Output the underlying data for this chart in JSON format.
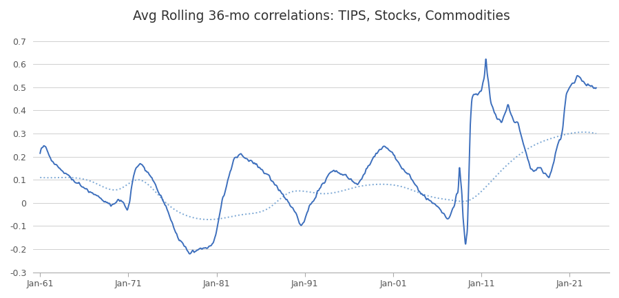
{
  "title": "Avg Rolling 36-mo correlations: TIPS, Stocks, Commodities",
  "title_fontsize": 13.5,
  "xlim_years": [
    1961,
    2025
  ],
  "ylim": [
    -0.3,
    0.75
  ],
  "yticks": [
    -0.3,
    -0.2,
    -0.1,
    0,
    0.1,
    0.2,
    0.3,
    0.4,
    0.5,
    0.6,
    0.7
  ],
  "xtick_labels": [
    "Jan-61",
    "Jan-71",
    "Jan-81",
    "Jan-91",
    "Jan-01",
    "Jan-11",
    "Jan-21"
  ],
  "xtick_years": [
    1961,
    1971,
    1981,
    1991,
    2001,
    2011,
    2021
  ],
  "line_color": "#3C6EBC",
  "dotted_color": "#7BA7D4",
  "background_color": "#FFFFFF",
  "grid_color": "#C8C8C8",
  "line_width": 1.4,
  "dotted_lw": 1.4,
  "solid_key_points": [
    [
      1961.0,
      0.21
    ],
    [
      1961.4,
      0.25
    ],
    [
      1961.8,
      0.23
    ],
    [
      1962.2,
      0.19
    ],
    [
      1962.6,
      0.17
    ],
    [
      1963.0,
      0.16
    ],
    [
      1963.4,
      0.14
    ],
    [
      1963.8,
      0.13
    ],
    [
      1964.2,
      0.12
    ],
    [
      1964.6,
      0.1
    ],
    [
      1965.0,
      0.09
    ],
    [
      1965.4,
      0.08
    ],
    [
      1965.8,
      0.07
    ],
    [
      1966.2,
      0.06
    ],
    [
      1966.6,
      0.05
    ],
    [
      1967.0,
      0.04
    ],
    [
      1967.4,
      0.03
    ],
    [
      1967.8,
      0.02
    ],
    [
      1968.2,
      0.01
    ],
    [
      1968.6,
      0.0
    ],
    [
      1969.0,
      -0.01
    ],
    [
      1969.5,
      0.0
    ],
    [
      1970.0,
      0.01
    ],
    [
      1970.5,
      0.0
    ],
    [
      1971.0,
      -0.02
    ],
    [
      1971.3,
      0.05
    ],
    [
      1971.6,
      0.12
    ],
    [
      1972.0,
      0.16
    ],
    [
      1972.4,
      0.17
    ],
    [
      1972.8,
      0.15
    ],
    [
      1973.2,
      0.13
    ],
    [
      1973.6,
      0.11
    ],
    [
      1974.0,
      0.08
    ],
    [
      1974.4,
      0.05
    ],
    [
      1974.8,
      0.02
    ],
    [
      1975.2,
      -0.01
    ],
    [
      1975.6,
      -0.05
    ],
    [
      1976.0,
      -0.09
    ],
    [
      1976.4,
      -0.13
    ],
    [
      1976.8,
      -0.16
    ],
    [
      1977.2,
      -0.18
    ],
    [
      1977.6,
      -0.2
    ],
    [
      1978.0,
      -0.22
    ],
    [
      1978.3,
      -0.21
    ],
    [
      1978.6,
      -0.21
    ],
    [
      1979.0,
      -0.2
    ],
    [
      1979.4,
      -0.2
    ],
    [
      1979.8,
      -0.2
    ],
    [
      1980.2,
      -0.19
    ],
    [
      1980.6,
      -0.17
    ],
    [
      1981.0,
      -0.12
    ],
    [
      1981.3,
      -0.06
    ],
    [
      1981.6,
      0.01
    ],
    [
      1982.0,
      0.05
    ],
    [
      1982.3,
      0.1
    ],
    [
      1982.6,
      0.14
    ],
    [
      1983.0,
      0.19
    ],
    [
      1983.3,
      0.2
    ],
    [
      1983.6,
      0.21
    ],
    [
      1984.0,
      0.2
    ],
    [
      1984.3,
      0.19
    ],
    [
      1984.6,
      0.18
    ],
    [
      1985.0,
      0.18
    ],
    [
      1985.3,
      0.17
    ],
    [
      1985.6,
      0.16
    ],
    [
      1986.0,
      0.15
    ],
    [
      1986.4,
      0.13
    ],
    [
      1986.8,
      0.12
    ],
    [
      1987.2,
      0.1
    ],
    [
      1987.6,
      0.08
    ],
    [
      1988.0,
      0.06
    ],
    [
      1988.4,
      0.04
    ],
    [
      1988.8,
      0.02
    ],
    [
      1989.2,
      0.0
    ],
    [
      1989.6,
      -0.02
    ],
    [
      1990.0,
      -0.05
    ],
    [
      1990.3,
      -0.08
    ],
    [
      1990.6,
      -0.1
    ],
    [
      1991.0,
      -0.07
    ],
    [
      1991.3,
      -0.04
    ],
    [
      1991.6,
      -0.01
    ],
    [
      1992.0,
      0.01
    ],
    [
      1992.4,
      0.04
    ],
    [
      1992.8,
      0.07
    ],
    [
      1993.2,
      0.09
    ],
    [
      1993.5,
      0.11
    ],
    [
      1993.8,
      0.13
    ],
    [
      1994.2,
      0.14
    ],
    [
      1994.5,
      0.14
    ],
    [
      1994.8,
      0.13
    ],
    [
      1995.2,
      0.12
    ],
    [
      1995.5,
      0.12
    ],
    [
      1995.8,
      0.11
    ],
    [
      1996.2,
      0.1
    ],
    [
      1996.5,
      0.09
    ],
    [
      1996.8,
      0.08
    ],
    [
      1997.2,
      0.09
    ],
    [
      1997.5,
      0.11
    ],
    [
      1997.8,
      0.13
    ],
    [
      1998.2,
      0.16
    ],
    [
      1998.5,
      0.18
    ],
    [
      1998.8,
      0.2
    ],
    [
      1999.2,
      0.22
    ],
    [
      1999.5,
      0.23
    ],
    [
      1999.8,
      0.24
    ],
    [
      2000.2,
      0.24
    ],
    [
      2000.5,
      0.23
    ],
    [
      2000.8,
      0.22
    ],
    [
      2001.2,
      0.2
    ],
    [
      2001.5,
      0.18
    ],
    [
      2001.8,
      0.16
    ],
    [
      2002.2,
      0.14
    ],
    [
      2002.5,
      0.13
    ],
    [
      2002.8,
      0.12
    ],
    [
      2003.2,
      0.1
    ],
    [
      2003.5,
      0.08
    ],
    [
      2003.8,
      0.06
    ],
    [
      2004.2,
      0.04
    ],
    [
      2004.5,
      0.03
    ],
    [
      2004.8,
      0.02
    ],
    [
      2005.2,
      0.01
    ],
    [
      2005.5,
      0.0
    ],
    [
      2005.8,
      -0.01
    ],
    [
      2006.2,
      -0.02
    ],
    [
      2006.5,
      -0.04
    ],
    [
      2006.8,
      -0.05
    ],
    [
      2007.2,
      -0.07
    ],
    [
      2007.4,
      -0.06
    ],
    [
      2007.6,
      -0.04
    ],
    [
      2007.8,
      -0.02
    ],
    [
      2008.0,
      0.0
    ],
    [
      2008.2,
      0.04
    ],
    [
      2008.4,
      0.08
    ],
    [
      2008.5,
      0.15
    ],
    [
      2008.6,
      0.12
    ],
    [
      2008.7,
      0.08
    ],
    [
      2008.8,
      0.03
    ],
    [
      2008.9,
      -0.05
    ],
    [
      2009.0,
      -0.1
    ],
    [
      2009.1,
      -0.15
    ],
    [
      2009.2,
      -0.18
    ],
    [
      2009.25,
      -0.17
    ],
    [
      2009.3,
      -0.15
    ],
    [
      2009.4,
      -0.12
    ],
    [
      2009.5,
      0.0
    ],
    [
      2009.6,
      0.15
    ],
    [
      2009.7,
      0.3
    ],
    [
      2009.8,
      0.38
    ],
    [
      2009.9,
      0.44
    ],
    [
      2010.0,
      0.46
    ],
    [
      2010.2,
      0.47
    ],
    [
      2010.5,
      0.47
    ],
    [
      2010.8,
      0.48
    ],
    [
      2011.0,
      0.49
    ],
    [
      2011.2,
      0.53
    ],
    [
      2011.4,
      0.58
    ],
    [
      2011.5,
      0.62
    ],
    [
      2011.6,
      0.58
    ],
    [
      2011.8,
      0.52
    ],
    [
      2012.0,
      0.45
    ],
    [
      2012.2,
      0.42
    ],
    [
      2012.4,
      0.4
    ],
    [
      2012.6,
      0.38
    ],
    [
      2012.8,
      0.36
    ],
    [
      2013.0,
      0.36
    ],
    [
      2013.2,
      0.35
    ],
    [
      2013.4,
      0.36
    ],
    [
      2013.6,
      0.38
    ],
    [
      2013.8,
      0.4
    ],
    [
      2014.0,
      0.42
    ],
    [
      2014.2,
      0.4
    ],
    [
      2014.4,
      0.38
    ],
    [
      2014.6,
      0.36
    ],
    [
      2014.8,
      0.35
    ],
    [
      2015.0,
      0.35
    ],
    [
      2015.3,
      0.32
    ],
    [
      2015.6,
      0.28
    ],
    [
      2016.0,
      0.22
    ],
    [
      2016.3,
      0.18
    ],
    [
      2016.6,
      0.15
    ],
    [
      2017.0,
      0.14
    ],
    [
      2017.3,
      0.15
    ],
    [
      2017.6,
      0.15
    ],
    [
      2018.0,
      0.13
    ],
    [
      2018.3,
      0.12
    ],
    [
      2018.6,
      0.11
    ],
    [
      2019.0,
      0.15
    ],
    [
      2019.2,
      0.18
    ],
    [
      2019.4,
      0.22
    ],
    [
      2019.6,
      0.25
    ],
    [
      2019.8,
      0.27
    ],
    [
      2020.0,
      0.28
    ],
    [
      2020.2,
      0.32
    ],
    [
      2020.4,
      0.4
    ],
    [
      2020.6,
      0.46
    ],
    [
      2020.8,
      0.49
    ],
    [
      2021.0,
      0.5
    ],
    [
      2021.3,
      0.52
    ],
    [
      2021.6,
      0.53
    ],
    [
      2022.0,
      0.55
    ],
    [
      2022.3,
      0.53
    ],
    [
      2022.6,
      0.52
    ],
    [
      2023.0,
      0.51
    ],
    [
      2023.3,
      0.51
    ],
    [
      2023.6,
      0.5
    ],
    [
      2024.0,
      0.5
    ]
  ],
  "dotted_key_points": [
    [
      1961.0,
      0.11
    ],
    [
      1964.0,
      0.11
    ],
    [
      1967.0,
      0.09
    ],
    [
      1970.0,
      0.06
    ],
    [
      1972.0,
      0.1
    ],
    [
      1975.0,
      0.01
    ],
    [
      1978.0,
      -0.06
    ],
    [
      1981.0,
      -0.07
    ],
    [
      1984.0,
      -0.05
    ],
    [
      1987.0,
      -0.02
    ],
    [
      1989.0,
      0.04
    ],
    [
      1991.0,
      0.05
    ],
    [
      1993.0,
      0.04
    ],
    [
      1995.0,
      0.05
    ],
    [
      1997.0,
      0.07
    ],
    [
      1999.0,
      0.08
    ],
    [
      2002.0,
      0.07
    ],
    [
      2005.0,
      0.03
    ],
    [
      2008.0,
      0.01
    ],
    [
      2009.5,
      0.01
    ],
    [
      2011.0,
      0.05
    ],
    [
      2013.0,
      0.13
    ],
    [
      2015.0,
      0.2
    ],
    [
      2017.0,
      0.25
    ],
    [
      2019.0,
      0.28
    ],
    [
      2021.0,
      0.3
    ],
    [
      2024.0,
      0.3
    ]
  ],
  "noise_seed": 42,
  "noise_amplitude": 0.018,
  "noise_frequency": 8
}
